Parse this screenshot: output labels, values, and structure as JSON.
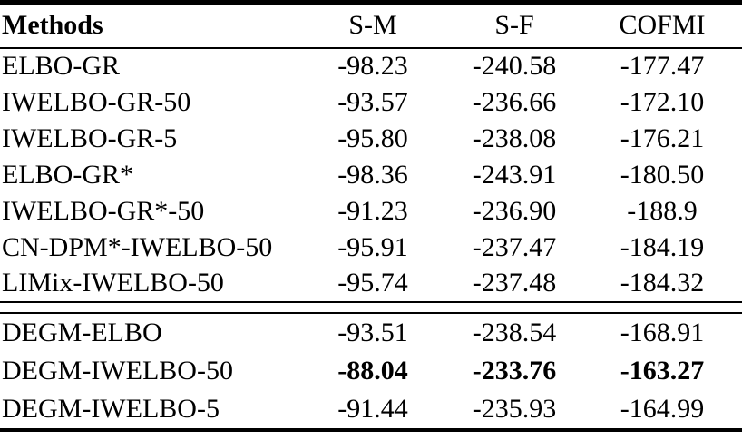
{
  "table": {
    "columns": [
      "Methods",
      "S-M",
      "S-F",
      "COFMI"
    ],
    "groups": [
      {
        "rows": [
          {
            "method": "ELBO-GR",
            "values": [
              "-98.23",
              "-240.58",
              "-177.47"
            ],
            "bold": false
          },
          {
            "method": "IWELBO-GR-50",
            "values": [
              "-93.57",
              "-236.66",
              "-172.10"
            ],
            "bold": false
          },
          {
            "method": "IWELBO-GR-5",
            "values": [
              "-95.80",
              "-238.08",
              "-176.21"
            ],
            "bold": false
          },
          {
            "method": "ELBO-GR*",
            "values": [
              "-98.36",
              "-243.91",
              "-180.50"
            ],
            "bold": false
          },
          {
            "method": "IWELBO-GR*-50",
            "values": [
              "-91.23",
              "-236.90",
              "-188.9"
            ],
            "bold": false
          },
          {
            "method": "CN-DPM*-IWELBO-50",
            "values": [
              "-95.91",
              "-237.47",
              "-184.19"
            ],
            "bold": false
          },
          {
            "method": "LIMix-IWELBO-50",
            "values": [
              "-95.74",
              "-237.48",
              "-184.32"
            ],
            "bold": false
          }
        ]
      },
      {
        "rows": [
          {
            "method": "DEGM-ELBO",
            "values": [
              "-93.51",
              "-238.54",
              "-168.91"
            ],
            "bold": false
          },
          {
            "method": "DEGM-IWELBO-50",
            "values": [
              "-88.04",
              "-233.76",
              "-163.27"
            ],
            "bold": true
          },
          {
            "method": "DEGM-IWELBO-5",
            "values": [
              "-91.44",
              "-235.93",
              "-164.99"
            ],
            "bold": false
          }
        ]
      }
    ]
  }
}
